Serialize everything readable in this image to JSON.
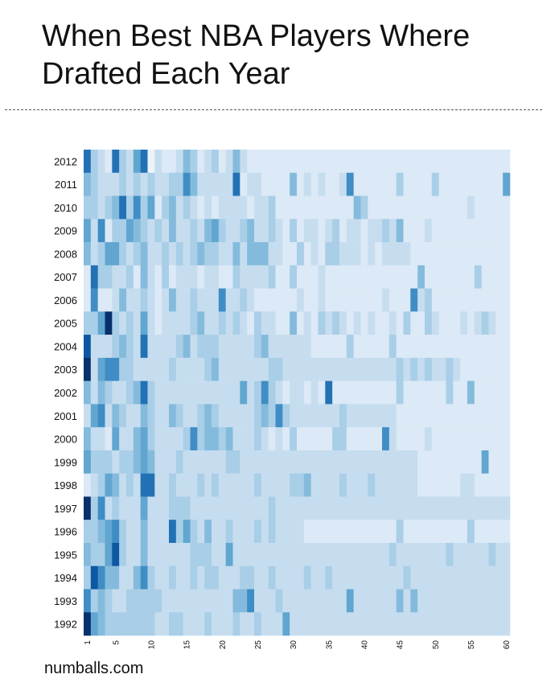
{
  "title": "When Best NBA Players Where Drafted Each Year",
  "footer": "numballs.com",
  "colors": {
    "low": "#ecf3fb",
    "high": "#08306b",
    "base": "#f3f8fd"
  },
  "chart_data": {
    "type": "heatmap",
    "title": "When Best NBA Players Where Drafted Each Year",
    "xlabel": "",
    "ylabel": "",
    "x_ticks": [
      1,
      5,
      10,
      15,
      20,
      25,
      30,
      35,
      40,
      45,
      50,
      55,
      60
    ],
    "x_range": [
      1,
      60
    ],
    "y_labels": [
      "2012",
      "2011",
      "2010",
      "2009",
      "2008",
      "2007",
      "2006",
      "2005",
      "2004",
      "2003",
      "2002",
      "2001",
      "2000",
      "1999",
      "1998",
      "1997",
      "1996",
      "1995",
      "1994",
      "1993",
      "1992"
    ],
    "value_range": [
      0,
      9
    ],
    "rows": {
      "2012": [
        7,
        3,
        2,
        1,
        7,
        3,
        2,
        5,
        7,
        0,
        2,
        1,
        1,
        2,
        4,
        3,
        1,
        2,
        3,
        1,
        2,
        4,
        2,
        1,
        1,
        1,
        1,
        1,
        1,
        1,
        1,
        1,
        1,
        1,
        1,
        1,
        1,
        1,
        1,
        1,
        1,
        1,
        1,
        1,
        1,
        1,
        1,
        1,
        1,
        1,
        1,
        1,
        1,
        1,
        1,
        1,
        1,
        1,
        1,
        1
      ],
      "2011": [
        4,
        3,
        2,
        2,
        2,
        3,
        2,
        3,
        2,
        3,
        2,
        2,
        3,
        3,
        6,
        4,
        2,
        2,
        2,
        2,
        2,
        7,
        1,
        2,
        2,
        1,
        1,
        1,
        1,
        4,
        1,
        2,
        1,
        2,
        1,
        1,
        2,
        6,
        1,
        1,
        1,
        1,
        1,
        1,
        3,
        1,
        1,
        1,
        1,
        3,
        1,
        1,
        1,
        1,
        1,
        1,
        1,
        1,
        1,
        5
      ],
      "2010": [
        3,
        3,
        2,
        3,
        4,
        7,
        3,
        6,
        3,
        5,
        1,
        3,
        4,
        2,
        3,
        2,
        1,
        2,
        1,
        2,
        2,
        2,
        2,
        1,
        2,
        2,
        3,
        1,
        1,
        1,
        1,
        1,
        1,
        1,
        1,
        1,
        1,
        1,
        4,
        3,
        1,
        1,
        1,
        1,
        1,
        1,
        1,
        1,
        1,
        1,
        1,
        1,
        1,
        1,
        2,
        1,
        1,
        1,
        1,
        1
      ],
      "2009": [
        5,
        2,
        6,
        1,
        3,
        3,
        5,
        4,
        3,
        2,
        3,
        2,
        4,
        2,
        2,
        3,
        2,
        4,
        5,
        3,
        2,
        2,
        3,
        4,
        2,
        2,
        3,
        2,
        1,
        3,
        1,
        2,
        2,
        1,
        2,
        3,
        1,
        2,
        2,
        1,
        2,
        2,
        3,
        2,
        4,
        1,
        1,
        1,
        2,
        1,
        1,
        1,
        1,
        1,
        1,
        1,
        1,
        1,
        1,
        1
      ],
      "2008": [
        4,
        2,
        3,
        5,
        5,
        3,
        2,
        3,
        4,
        2,
        2,
        3,
        2,
        3,
        2,
        3,
        4,
        3,
        3,
        2,
        2,
        4,
        2,
        4,
        4,
        4,
        2,
        2,
        1,
        1,
        3,
        1,
        2,
        1,
        3,
        3,
        2,
        2,
        2,
        1,
        2,
        1,
        2,
        2,
        2,
        2,
        1,
        1,
        1,
        1,
        1,
        1,
        1,
        1,
        1,
        1,
        1,
        1,
        1,
        1
      ],
      "2007": [
        1,
        7,
        3,
        3,
        2,
        2,
        3,
        1,
        4,
        2,
        1,
        3,
        1,
        2,
        2,
        2,
        1,
        2,
        2,
        1,
        1,
        3,
        2,
        2,
        2,
        2,
        3,
        1,
        1,
        3,
        1,
        1,
        1,
        2,
        1,
        1,
        1,
        1,
        1,
        1,
        1,
        1,
        1,
        1,
        1,
        1,
        1,
        4,
        1,
        1,
        1,
        1,
        1,
        1,
        1,
        3,
        1,
        1,
        1,
        1
      ],
      "2006": [
        1,
        6,
        1,
        1,
        2,
        4,
        2,
        2,
        3,
        2,
        1,
        2,
        4,
        2,
        2,
        3,
        2,
        2,
        2,
        6,
        2,
        2,
        3,
        2,
        1,
        1,
        1,
        1,
        1,
        1,
        2,
        1,
        1,
        2,
        1,
        1,
        1,
        1,
        1,
        1,
        1,
        1,
        2,
        1,
        1,
        1,
        6,
        2,
        3,
        1,
        1,
        1,
        1,
        1,
        1,
        1,
        1,
        1,
        1,
        1
      ],
      "2005": [
        3,
        3,
        5,
        9,
        3,
        2,
        3,
        2,
        5,
        2,
        1,
        2,
        2,
        2,
        2,
        3,
        4,
        2,
        2,
        3,
        2,
        3,
        2,
        1,
        3,
        2,
        2,
        1,
        1,
        4,
        1,
        2,
        1,
        3,
        2,
        3,
        2,
        1,
        2,
        1,
        2,
        1,
        1,
        2,
        1,
        3,
        1,
        1,
        3,
        2,
        1,
        1,
        1,
        2,
        1,
        2,
        3,
        2,
        1,
        1
      ],
      "2004": [
        8,
        2,
        2,
        2,
        3,
        4,
        3,
        2,
        7,
        2,
        2,
        2,
        2,
        3,
        4,
        2,
        3,
        3,
        3,
        2,
        2,
        2,
        2,
        2,
        3,
        4,
        2,
        2,
        2,
        2,
        2,
        2,
        1,
        1,
        1,
        1,
        1,
        3,
        1,
        1,
        1,
        1,
        1,
        3,
        1,
        1,
        1,
        1,
        1,
        1,
        1,
        1,
        1,
        1,
        1,
        1,
        1,
        1,
        1,
        1
      ],
      "2003": [
        9,
        2,
        5,
        6,
        6,
        3,
        3,
        2,
        2,
        2,
        2,
        2,
        3,
        2,
        2,
        2,
        2,
        3,
        4,
        2,
        2,
        2,
        2,
        2,
        2,
        2,
        3,
        3,
        2,
        2,
        2,
        2,
        2,
        2,
        2,
        2,
        2,
        2,
        2,
        2,
        2,
        2,
        2,
        2,
        3,
        2,
        3,
        2,
        3,
        2,
        2,
        3,
        2,
        1,
        1,
        1,
        1,
        1,
        1,
        1
      ],
      "2002": [
        4,
        2,
        4,
        3,
        2,
        2,
        3,
        4,
        7,
        3,
        2,
        2,
        2,
        2,
        2,
        2,
        2,
        2,
        2,
        2,
        2,
        2,
        5,
        2,
        3,
        6,
        3,
        2,
        1,
        2,
        2,
        1,
        2,
        1,
        7,
        1,
        1,
        1,
        1,
        1,
        1,
        1,
        1,
        1,
        3,
        1,
        1,
        1,
        1,
        1,
        1,
        3,
        1,
        1,
        4,
        1,
        1,
        1,
        1,
        1
      ],
      "2001": [
        2,
        5,
        6,
        2,
        4,
        3,
        2,
        2,
        4,
        3,
        2,
        2,
        4,
        3,
        2,
        2,
        3,
        4,
        3,
        2,
        2,
        2,
        2,
        2,
        3,
        4,
        3,
        6,
        3,
        2,
        2,
        2,
        2,
        2,
        2,
        2,
        3,
        2,
        2,
        2,
        2,
        2,
        2,
        2,
        1,
        1,
        1,
        1,
        1,
        1,
        1,
        1,
        1,
        1,
        1,
        1,
        1,
        1,
        1,
        1
      ],
      "2000": [
        4,
        2,
        2,
        1,
        5,
        2,
        2,
        4,
        5,
        3,
        2,
        2,
        2,
        2,
        3,
        6,
        3,
        4,
        4,
        3,
        4,
        2,
        2,
        2,
        3,
        2,
        1,
        2,
        1,
        3,
        1,
        1,
        1,
        1,
        1,
        3,
        3,
        1,
        1,
        1,
        1,
        1,
        6,
        2,
        1,
        1,
        1,
        1,
        2,
        1,
        1,
        1,
        1,
        1,
        1,
        1,
        1,
        1,
        1,
        1
      ],
      "1999": [
        5,
        3,
        3,
        3,
        2,
        3,
        3,
        4,
        5,
        4,
        2,
        2,
        2,
        3,
        2,
        2,
        2,
        2,
        2,
        2,
        3,
        3,
        2,
        2,
        2,
        2,
        2,
        2,
        2,
        2,
        2,
        2,
        2,
        2,
        2,
        2,
        2,
        2,
        2,
        2,
        2,
        2,
        2,
        2,
        2,
        2,
        2,
        1,
        1,
        1,
        1,
        1,
        1,
        1,
        1,
        1,
        5,
        1,
        1,
        1
      ],
      "1998": [
        1,
        2,
        3,
        5,
        4,
        2,
        3,
        2,
        7,
        7,
        2,
        2,
        3,
        2,
        2,
        2,
        3,
        2,
        3,
        2,
        2,
        2,
        2,
        2,
        3,
        2,
        2,
        2,
        2,
        3,
        3,
        4,
        2,
        2,
        2,
        2,
        3,
        2,
        2,
        2,
        3,
        2,
        2,
        2,
        2,
        2,
        2,
        1,
        1,
        1,
        1,
        1,
        1,
        2,
        2,
        1,
        1,
        1,
        1,
        1
      ],
      "1997": [
        9,
        3,
        6,
        2,
        3,
        2,
        2,
        2,
        5,
        2,
        2,
        2,
        3,
        3,
        3,
        2,
        2,
        2,
        2,
        2,
        2,
        2,
        2,
        2,
        2,
        2,
        3,
        2,
        2,
        2,
        2,
        2,
        2,
        2,
        2,
        2,
        2,
        2,
        2,
        2,
        2,
        2,
        2,
        2,
        2,
        2,
        2,
        2,
        2,
        2,
        2,
        2,
        2,
        2,
        2,
        2,
        2,
        2,
        2,
        2
      ],
      "1996": [
        3,
        3,
        4,
        5,
        6,
        3,
        2,
        2,
        4,
        2,
        2,
        2,
        7,
        3,
        5,
        3,
        2,
        4,
        2,
        2,
        3,
        2,
        2,
        2,
        3,
        2,
        3,
        2,
        2,
        2,
        2,
        1,
        1,
        1,
        1,
        1,
        1,
        1,
        1,
        1,
        1,
        1,
        1,
        1,
        3,
        1,
        1,
        1,
        1,
        1,
        1,
        1,
        1,
        1,
        3,
        1,
        1,
        1,
        1,
        1
      ],
      "1995": [
        4,
        3,
        3,
        5,
        8,
        3,
        2,
        2,
        4,
        2,
        2,
        2,
        2,
        2,
        2,
        3,
        3,
        3,
        2,
        2,
        5,
        2,
        2,
        2,
        2,
        2,
        2,
        2,
        2,
        2,
        2,
        2,
        2,
        2,
        2,
        2,
        2,
        2,
        2,
        2,
        2,
        2,
        2,
        3,
        2,
        2,
        2,
        2,
        2,
        2,
        2,
        3,
        2,
        2,
        2,
        2,
        2,
        3,
        2,
        2
      ],
      "1994": [
        3,
        8,
        6,
        4,
        4,
        2,
        2,
        4,
        6,
        3,
        2,
        2,
        3,
        2,
        2,
        3,
        2,
        3,
        3,
        2,
        2,
        2,
        3,
        3,
        2,
        2,
        3,
        2,
        2,
        2,
        2,
        3,
        2,
        2,
        3,
        2,
        2,
        2,
        2,
        2,
        2,
        2,
        2,
        2,
        2,
        3,
        2,
        2,
        2,
        2,
        2,
        2,
        2,
        2,
        2,
        2,
        2,
        2,
        2,
        2
      ],
      "1993": [
        6,
        3,
        4,
        3,
        2,
        2,
        3,
        3,
        3,
        3,
        3,
        2,
        2,
        2,
        2,
        2,
        2,
        2,
        2,
        2,
        2,
        4,
        4,
        6,
        2,
        2,
        2,
        3,
        2,
        2,
        2,
        2,
        2,
        2,
        2,
        2,
        2,
        5,
        2,
        2,
        2,
        2,
        2,
        2,
        4,
        2,
        4,
        2,
        2,
        2,
        2,
        2,
        2,
        2,
        2,
        2,
        2,
        2,
        2,
        2
      ],
      "1992": [
        9,
        5,
        4,
        3,
        3,
        3,
        3,
        3,
        3,
        3,
        2,
        2,
        3,
        3,
        2,
        2,
        2,
        3,
        2,
        2,
        2,
        3,
        2,
        2,
        3,
        2,
        2,
        2,
        5,
        2,
        2,
        2,
        2,
        2,
        2,
        2,
        2,
        2,
        2,
        2,
        2,
        2,
        2,
        2,
        2,
        2,
        2,
        2,
        2,
        2,
        2,
        2,
        2,
        2,
        2,
        2,
        2,
        2,
        2,
        2
      ]
    }
  }
}
